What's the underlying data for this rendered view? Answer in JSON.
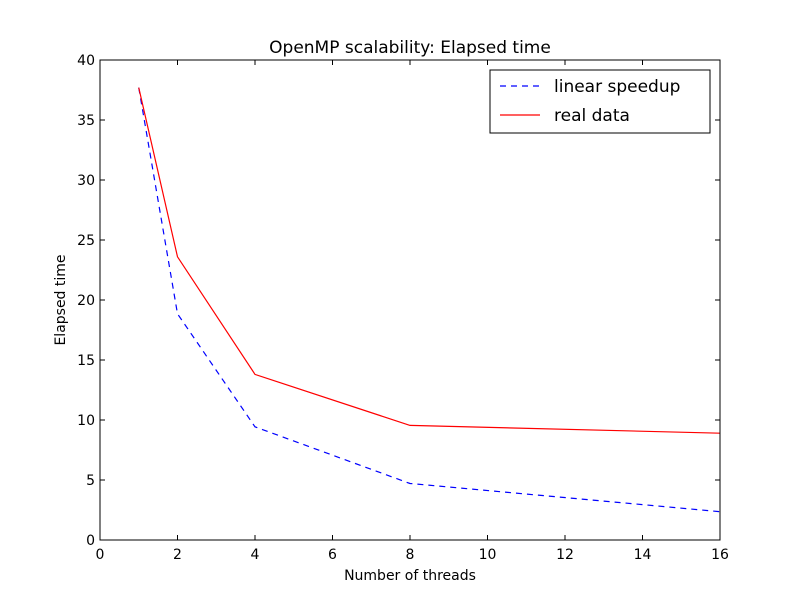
{
  "chart_data": {
    "type": "line",
    "title": "OpenMP scalability: Elapsed time",
    "xlabel": "Number of threads",
    "ylabel": "Elapsed time",
    "xlim": [
      0,
      16
    ],
    "ylim": [
      0,
      40
    ],
    "xticks": [
      0,
      2,
      4,
      6,
      8,
      10,
      12,
      14,
      16
    ],
    "yticks": [
      0,
      5,
      10,
      15,
      20,
      25,
      30,
      35,
      40
    ],
    "grid": false,
    "legend_position": "top-right",
    "series": [
      {
        "name": "linear speedup",
        "color": "#0000ff",
        "style": "dashed",
        "x": [
          1,
          2,
          4,
          8,
          16
        ],
        "y": [
          37.7,
          18.85,
          9.43,
          4.71,
          2.36
        ]
      },
      {
        "name": "real data",
        "color": "#ff0000",
        "style": "solid",
        "x": [
          1,
          2,
          4,
          8,
          16
        ],
        "y": [
          37.7,
          23.6,
          13.8,
          9.55,
          8.9
        ]
      }
    ]
  }
}
